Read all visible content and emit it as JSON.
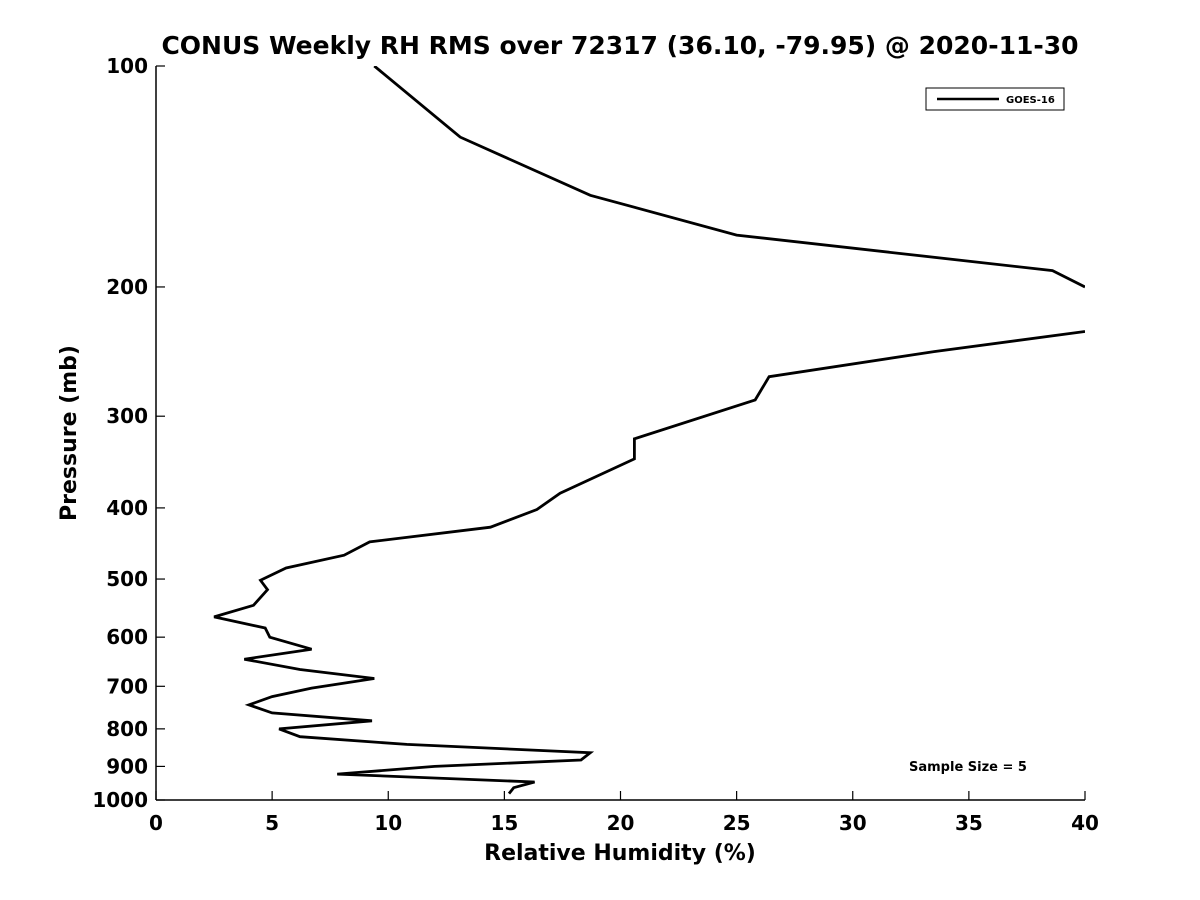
{
  "chart_data": {
    "type": "line",
    "title": "CONUS Weekly RH RMS over 72317 (36.10, -79.95) @ 2020-11-30",
    "xlabel": "Relative Humidity (%)",
    "ylabel": "Pressure (mb)",
    "xlim": [
      0,
      40
    ],
    "ylim": [
      100,
      1000
    ],
    "y_scale": "log",
    "y_reversed": true,
    "x_ticks": [
      0,
      5,
      10,
      15,
      20,
      25,
      30,
      35,
      40
    ],
    "y_ticks": [
      100,
      200,
      300,
      400,
      500,
      600,
      700,
      800,
      900,
      1000
    ],
    "grid": false,
    "legend_position": "top-right",
    "annotation": "Sample Size = 5",
    "line_color": "#000000",
    "series": [
      {
        "name": "GOES-16",
        "points": [
          [
            9.4,
            100
          ],
          [
            13.1,
            125
          ],
          [
            18.7,
            150
          ],
          [
            25.0,
            170
          ],
          [
            38.6,
            190
          ],
          [
            40.0,
            200
          ],
          [
            null,
            null
          ],
          [
            40.0,
            230
          ],
          [
            33.5,
            245
          ],
          [
            26.4,
            265
          ],
          [
            25.8,
            285
          ],
          [
            20.6,
            322
          ],
          [
            20.6,
            343
          ],
          [
            17.4,
            382
          ],
          [
            16.4,
            402
          ],
          [
            14.4,
            425
          ],
          [
            9.2,
            445
          ],
          [
            8.1,
            464
          ],
          [
            5.6,
            483
          ],
          [
            4.5,
            502
          ],
          [
            4.8,
            517
          ],
          [
            4.2,
            543
          ],
          [
            2.5,
            563
          ],
          [
            4.7,
            583
          ],
          [
            4.9,
            600
          ],
          [
            6.7,
            623
          ],
          [
            3.8,
            643
          ],
          [
            6.2,
            664
          ],
          [
            9.4,
            683
          ],
          [
            6.7,
            704
          ],
          [
            5.0,
            723
          ],
          [
            4.0,
            742
          ],
          [
            5.0,
            761
          ],
          [
            9.3,
            780
          ],
          [
            5.3,
            800
          ],
          [
            6.2,
            820
          ],
          [
            10.8,
            840
          ],
          [
            18.7,
            862
          ],
          [
            18.3,
            882
          ],
          [
            12.0,
            900
          ],
          [
            7.8,
            922
          ],
          [
            16.3,
            945
          ],
          [
            15.4,
            962
          ],
          [
            15.2,
            980
          ]
        ]
      }
    ]
  }
}
